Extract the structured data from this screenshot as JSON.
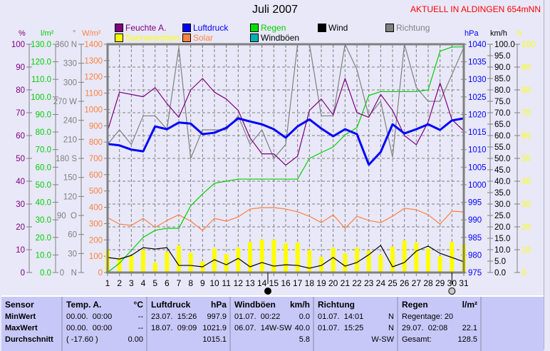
{
  "header": {
    "title": "Juli 2007",
    "station": "AKTUELL IN ALDINGEN 654mNN"
  },
  "legend": [
    {
      "label": "Feuchte A.",
      "color": "#800080",
      "text_color": "#800080"
    },
    {
      "label": "Luftdruck",
      "color": "#0000ff",
      "text_color": "#0000ff"
    },
    {
      "label": "Regen",
      "color": "#00e000",
      "text_color": "#00d000"
    },
    {
      "label": "Wind",
      "color": "#000000",
      "text_color": "#000000"
    },
    {
      "label": "Richtung",
      "color": "#808080",
      "text_color": "#808080"
    },
    {
      "label": "Sonnenschein",
      "color": "#ffff00",
      "text_color": "#ffff00"
    },
    {
      "label": "Solar",
      "color": "#ff8040",
      "text_color": "#ff8040"
    },
    {
      "label": "Windböen",
      "color": "#00b0b0",
      "text_color": "#000000"
    }
  ],
  "chart_data": {
    "type": "line",
    "title": "Juli 2007",
    "x": [
      1,
      2,
      3,
      4,
      5,
      6,
      7,
      8,
      9,
      10,
      11,
      12,
      13,
      14,
      15,
      16,
      17,
      18,
      19,
      20,
      21,
      22,
      23,
      24,
      25,
      26,
      27,
      28,
      29,
      30,
      31
    ],
    "xlabel": "",
    "grid": true,
    "axes": {
      "humidity": {
        "unit": "%",
        "range": [
          0,
          100
        ],
        "step": 10,
        "color": "#800080",
        "labels": [
          "0",
          "10",
          "20",
          "30",
          "40",
          "50",
          "60",
          "70",
          "80",
          "90",
          "100"
        ]
      },
      "rain": {
        "unit": "l/m²",
        "range": [
          0,
          130
        ],
        "step": 10,
        "color": "#00d000",
        "labels": [
          "0.0",
          "10.0",
          "20.0",
          "30.0",
          "40.0",
          "50.0",
          "60.0",
          "70.0",
          "80.0",
          "90.0",
          "100.0",
          "110.0",
          "120.0",
          "130.0"
        ]
      },
      "direction": {
        "unit": "°",
        "range": [
          0,
          360
        ],
        "step": 30,
        "color": "#808080",
        "labels": [
          "0   N",
          "30",
          "60",
          "90  O",
          "120",
          "150",
          "180 S",
          "210",
          "240",
          "270 W",
          "300",
          "330",
          "360 N"
        ]
      },
      "solar": {
        "unit": "W/m²",
        "range": [
          0,
          1400
        ],
        "step": 100,
        "color": "#ff8040",
        "labels": [
          "0",
          "100",
          "200",
          "300",
          "400",
          "500",
          "600",
          "700",
          "800",
          "900",
          "1000",
          "1100",
          "1200",
          "1300",
          "1400"
        ]
      },
      "pressure": {
        "unit": "hPa",
        "range": [
          975,
          1040
        ],
        "step": 5,
        "color": "#0000ff",
        "labels": [
          "975",
          "980",
          "985",
          "990",
          "995",
          "1000",
          "1005",
          "1010",
          "1015",
          "1020",
          "1025",
          "1030",
          "1035",
          "1040"
        ]
      },
      "wind": {
        "unit": "km/h",
        "range": [
          0,
          100
        ],
        "step": 5,
        "color": "#000000",
        "labels": [
          "0.0",
          "5.0",
          "10.0",
          "15.0",
          "20.0",
          "25.0",
          "30.0",
          "35.0",
          "40.0",
          "45.0",
          "50.0",
          "55.0",
          "60.0",
          "65.0",
          "70.0",
          "75.0",
          "80.0",
          "85.0",
          "90.0",
          "95.0",
          "100.0"
        ]
      },
      "sunshine": {
        "unit": "h",
        "range": [
          0,
          100
        ],
        "step": 10,
        "color": "#ffff00",
        "labels": [
          "0",
          "10",
          "20",
          "30",
          "40",
          "50",
          "60",
          "70",
          "80",
          "90",
          "100"
        ]
      }
    },
    "series": [
      {
        "name": "Sonnenschein",
        "axis": "sunshine",
        "type": "bar",
        "color": "#ffff00",
        "values": [
          10,
          6.6,
          7.5,
          10,
          4.4,
          9.1,
          11.9,
          8.8,
          5,
          10.6,
          8.1,
          10.9,
          13.4,
          14.4,
          14.4,
          12.8,
          13.1,
          10,
          6.9,
          10.9,
          8.4,
          10.9,
          9.7,
          7.8,
          11.3,
          14.1,
          13.1,
          10.6,
          7.2,
          13.4,
          12.5
        ]
      },
      {
        "name": "Solar",
        "axis": "solar",
        "type": "line",
        "color": "#ff8040",
        "values": [
          337,
          297,
          289,
          332,
          276,
          319,
          354,
          315,
          258,
          332,
          315,
          341,
          389,
          398,
          398,
          389,
          372,
          345,
          306,
          354,
          271,
          345,
          319,
          306,
          345,
          394,
          385,
          354,
          297,
          376,
          372
        ]
      },
      {
        "name": "Regen",
        "axis": "rain",
        "type": "line",
        "color": "#00d000",
        "values": [
          0,
          5.3,
          12.6,
          20,
          24,
          25.2,
          25.2,
          38,
          44.7,
          50.8,
          52,
          53.2,
          53.2,
          53.2,
          53.2,
          53.2,
          53.2,
          65,
          68.3,
          71.5,
          78.4,
          82.5,
          100.8,
          103,
          103,
          103,
          103,
          104,
          126,
          128.4,
          128.5
        ]
      },
      {
        "name": "Richtung",
        "axis": "direction",
        "type": "line",
        "color": "#808080",
        "values": [
          202,
          225,
          202,
          247,
          247,
          226,
          355,
          180,
          225,
          225,
          225,
          247,
          202,
          225,
          180,
          202,
          360,
          360,
          247,
          247,
          360,
          320,
          247,
          270,
          182,
          360,
          292,
          270,
          270,
          312,
          355
        ]
      },
      {
        "name": "Wind",
        "axis": "wind",
        "type": "line",
        "color": "#000000",
        "values": [
          6.6,
          5.9,
          7.5,
          10.9,
          10.3,
          10.9,
          3.1,
          3.1,
          2.5,
          5.6,
          3.4,
          6.2,
          2.5,
          4.4,
          2.8,
          3.4,
          3.1,
          1.9,
          3.1,
          6.6,
          2.8,
          4.4,
          7.8,
          11.9,
          2.5,
          4.4,
          9.4,
          11.6,
          8.4,
          6.6,
          4.7
        ]
      },
      {
        "name": "Feuchte A.",
        "axis": "humidity",
        "type": "line",
        "color": "#800080",
        "values": [
          62,
          79,
          78,
          77,
          81,
          74,
          68,
          80,
          85,
          79,
          76,
          71,
          59,
          52,
          52,
          47,
          51,
          71,
          76,
          69,
          85,
          70,
          68,
          78,
          71,
          60,
          56,
          66,
          83,
          67,
          62
        ]
      },
      {
        "name": "Luftdruck",
        "axis": "pressure",
        "type": "line",
        "color": "#0000ff",
        "thick": true,
        "values": [
          1011.6,
          1011.2,
          1010,
          1009.5,
          1016.6,
          1015.8,
          1017.7,
          1017.4,
          1014.4,
          1014.8,
          1016.2,
          1018.9,
          1018,
          1017.2,
          1015.8,
          1013.4,
          1016.6,
          1018.6,
          1016,
          1013.8,
          1015.8,
          1014.4,
          1005.7,
          1009.3,
          1017.2,
          1014.6,
          1015.8,
          1017.2,
          1015.6,
          1018.3,
          1018.9
        ]
      }
    ],
    "moon_phases": [
      {
        "day": 14.5,
        "phase": "new-moon"
      },
      {
        "day": 30,
        "phase": "full-moon"
      }
    ]
  },
  "table": {
    "sensor": [
      "Sensor",
      "MinWert",
      "MaxWert",
      "Durchschnitt"
    ],
    "columns": [
      {
        "label": "Temp. A.",
        "unit": "°C",
        "rows": [
          [
            "00.00.  00:00",
            "--"
          ],
          [
            "00.00.  00:00",
            "--"
          ],
          [
            "( -17.60 )",
            "0.00"
          ]
        ]
      },
      {
        "label": "Luftdruck",
        "unit": "hPa",
        "rows": [
          [
            "23.07.  15:26",
            "997.9"
          ],
          [
            "18.07.  09:09",
            "1021.9"
          ],
          [
            "",
            "1015.1"
          ]
        ]
      },
      {
        "label": "Windböen",
        "unit": "km/h",
        "rows": [
          [
            "01.07.  00:22",
            "0.0"
          ],
          [
            "06.07.  14W-SW",
            "40.0"
          ],
          [
            "",
            "5.8"
          ]
        ]
      },
      {
        "label": "Richtung",
        "unit": "",
        "rows": [
          [
            "01.07.  14:01",
            "N"
          ],
          [
            "01.07.  15:25",
            "N"
          ],
          [
            "",
            "W-SW"
          ]
        ]
      },
      {
        "label": "Regen",
        "unit": "l/m²",
        "rows": [
          [
            "Regentage: 20",
            ""
          ],
          [
            "29.07.  02:08",
            "22.1"
          ],
          [
            "Gesamt:",
            "128.5"
          ]
        ]
      }
    ]
  }
}
